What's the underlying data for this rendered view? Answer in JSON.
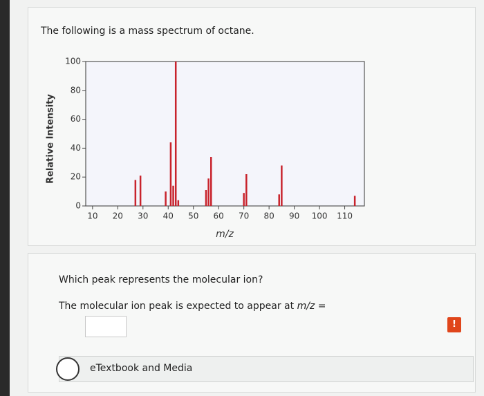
{
  "question": {
    "intro": "The following is a mass spectrum of octane.",
    "prompt": "Which peak represents the molecular ion?",
    "answer_lead": "The molecular ion peak is expected to appear at",
    "answer_var": "m/z",
    "answer_eq": "=",
    "alert": "!",
    "resources": "eTextbook and Media"
  },
  "chart_data": {
    "type": "bar",
    "x_label": "m/z",
    "y_label": "Relative Intensity",
    "x": [
      27,
      29,
      39,
      41,
      42,
      43,
      44,
      55,
      56,
      57,
      70,
      71,
      84,
      85,
      114
    ],
    "values": [
      18,
      21,
      10,
      44,
      14,
      100,
      4,
      11,
      19,
      34,
      9,
      22,
      8,
      28,
      7
    ],
    "color": "#c8232c",
    "xlim": [
      7.3,
      117.8
    ],
    "ylim": [
      0,
      100
    ],
    "xticks": [
      10,
      20,
      30,
      40,
      50,
      60,
      70,
      80,
      90,
      100,
      110
    ],
    "yticks": [
      0,
      20,
      40,
      60,
      80,
      100
    ]
  }
}
